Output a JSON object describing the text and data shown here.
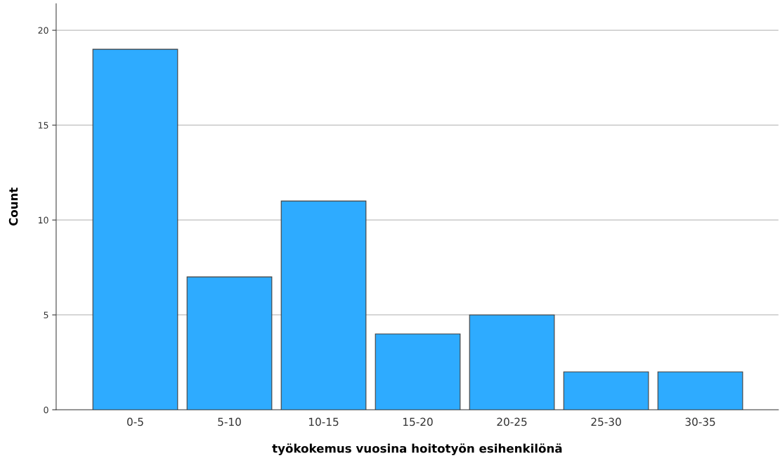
{
  "chart_data": {
    "type": "bar",
    "xlabel": "työkokemus vuosina hoitotyön esihenkilönä",
    "ylabel": "Count",
    "categories": [
      "0-5",
      "5-10",
      "10-15",
      "15-20",
      "20-25",
      "25-30",
      "30-35"
    ],
    "values": [
      19,
      7,
      11,
      4,
      5,
      2,
      2
    ],
    "color": "#2eabff",
    "ylim": [
      0,
      21.4
    ],
    "yticks": [
      0,
      5,
      10,
      15,
      20
    ],
    "grid": "y"
  }
}
